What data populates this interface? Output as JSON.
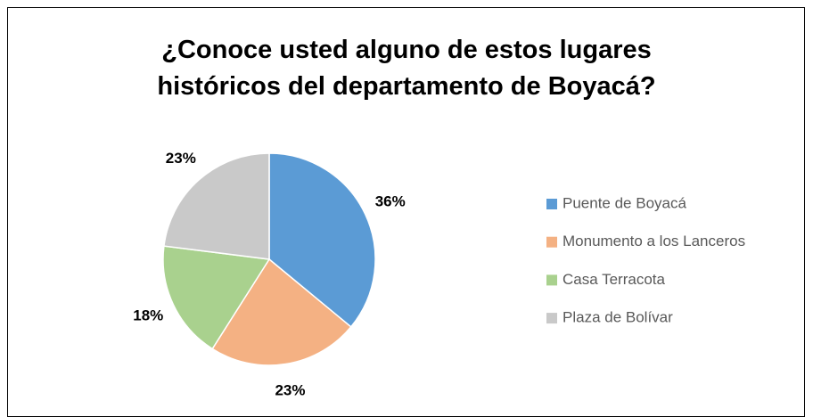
{
  "chart_data": {
    "type": "pie",
    "title": "¿Conoce usted alguno de estos lugares históricos del departamento de Boyacá?",
    "categories": [
      "Puente de Boyacá",
      "Monumento a los Lanceros",
      "Casa Terracota",
      "Plaza de Bolívar"
    ],
    "values": [
      36,
      23,
      18,
      23
    ],
    "value_labels": [
      "36%",
      "23%",
      "18%",
      "23%"
    ],
    "colors": [
      "#5b9bd5",
      "#f4b183",
      "#a9d18e",
      "#c9c9c9"
    ],
    "legend": "right"
  }
}
